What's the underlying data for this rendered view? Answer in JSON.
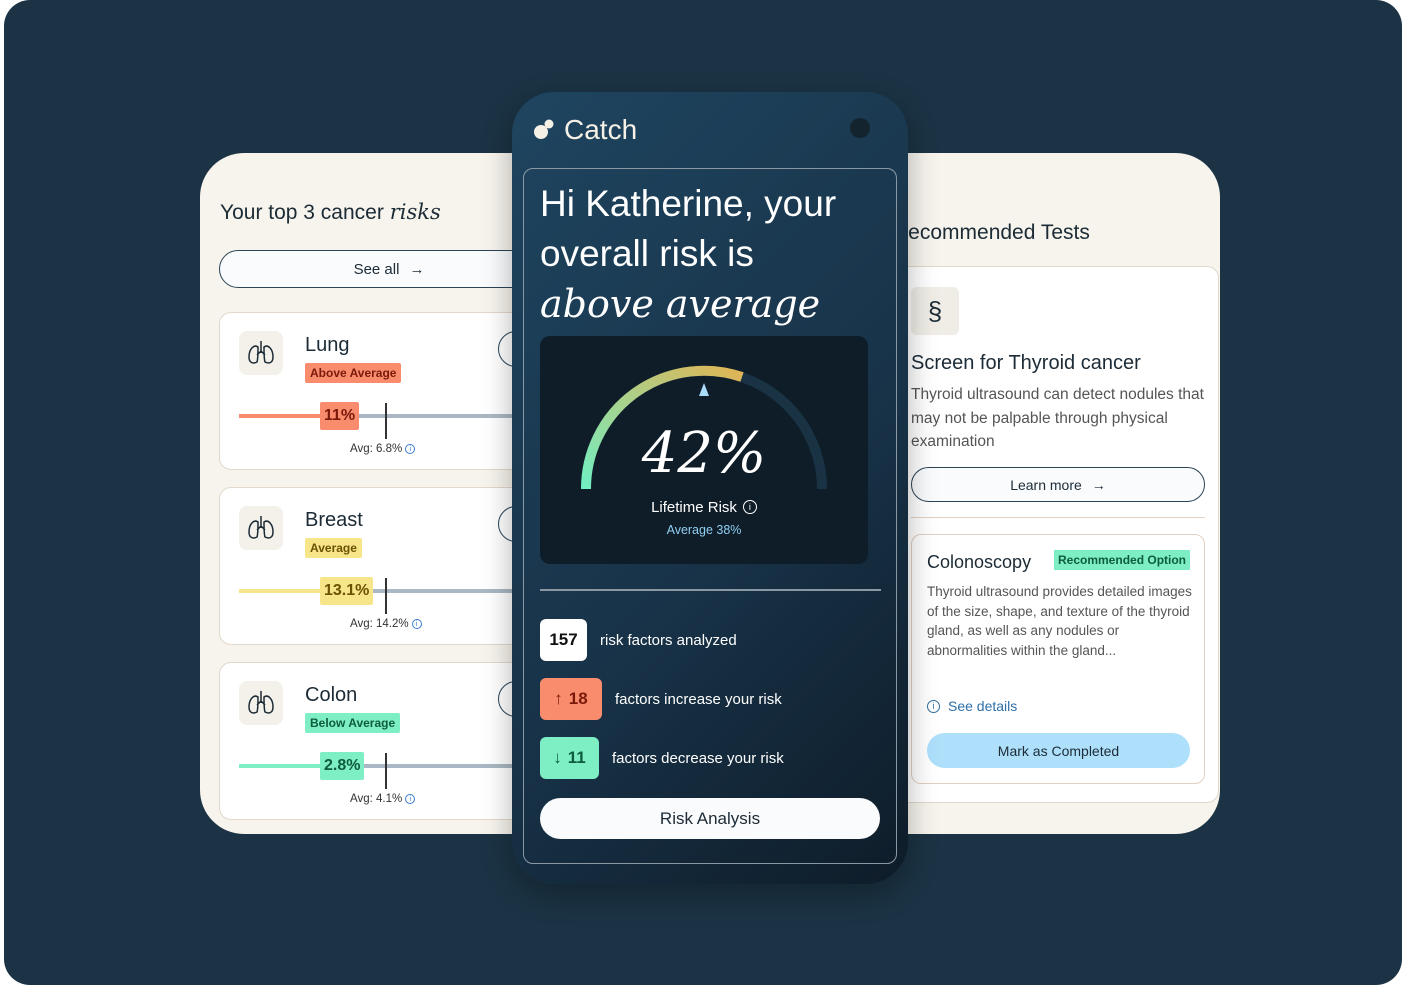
{
  "left_panel": {
    "title_plain": "Your top 3 cancer",
    "title_italic": "risks",
    "see_all": "See all",
    "risks": [
      {
        "name": "Lung",
        "badge": "Above Average",
        "value": "11%",
        "avg": "Avg: 6.8%",
        "color": "#fa8c6e",
        "badge_text": "#7a1a0a"
      },
      {
        "name": "Breast",
        "badge": "Average",
        "value": "13.1%",
        "avg": "Avg: 14.2%",
        "color": "#f7e58a",
        "badge_text": "#6b5200"
      },
      {
        "name": "Colon",
        "badge": "Below Average",
        "value": "2.8%",
        "avg": "Avg: 4.1%",
        "color": "#7eeec4",
        "badge_text": "#0d5c3c"
      }
    ]
  },
  "phone": {
    "brand": "Catch",
    "greeting": "Hi Katherine, your overall risk is",
    "greeting_italic": "above average",
    "gauge": {
      "value": "42%",
      "label": "Lifetime Risk",
      "average": "Average 38%"
    },
    "stats": [
      {
        "number": "157",
        "text": "risk factors analyzed"
      },
      {
        "number": "18",
        "arrow": "↑",
        "text": "factors increase your risk"
      },
      {
        "number": "11",
        "arrow": "↓",
        "text": "factors decrease your risk"
      }
    ],
    "cta": "Risk Analysis"
  },
  "right_panel": {
    "title": "Recommended Tests",
    "test_title": "Screen for Thyroid cancer",
    "test_desc": "Thyroid ultrasound can detect nodules that may not be palpable through physical examination",
    "learn_more": "Learn more",
    "option": {
      "name": "Colonoscopy",
      "badge": "Recommended Option",
      "desc": "Thyroid ultrasound provides detailed images of the size, shape, and texture of the thyroid gland, as well as any nodules or abnormalities within the gland...",
      "see_details": "See details",
      "complete": "Mark as Completed"
    }
  }
}
